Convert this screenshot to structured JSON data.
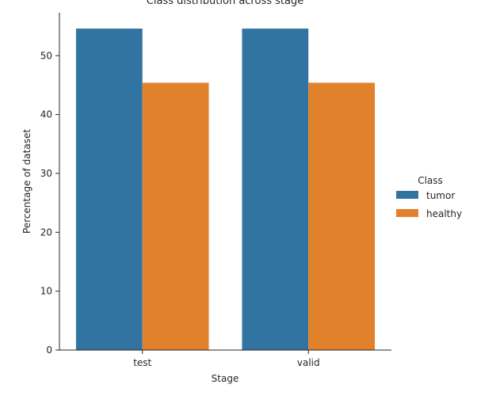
{
  "chart_data": {
    "type": "bar",
    "title": "Class distribution across stage",
    "xlabel": "Stage",
    "ylabel": "Percentage of dataset",
    "categories": [
      "test",
      "valid"
    ],
    "series": [
      {
        "name": "tumor",
        "values": [
          54.6,
          54.6
        ],
        "color": "#3274a1"
      },
      {
        "name": "healthy",
        "values": [
          45.4,
          45.4
        ],
        "color": "#e1812c"
      }
    ],
    "yticks": [
      0,
      10,
      20,
      30,
      40,
      50
    ],
    "ylim": [
      0,
      57.3
    ],
    "grid": false,
    "legend": {
      "title": "Class",
      "placement": "right"
    }
  }
}
